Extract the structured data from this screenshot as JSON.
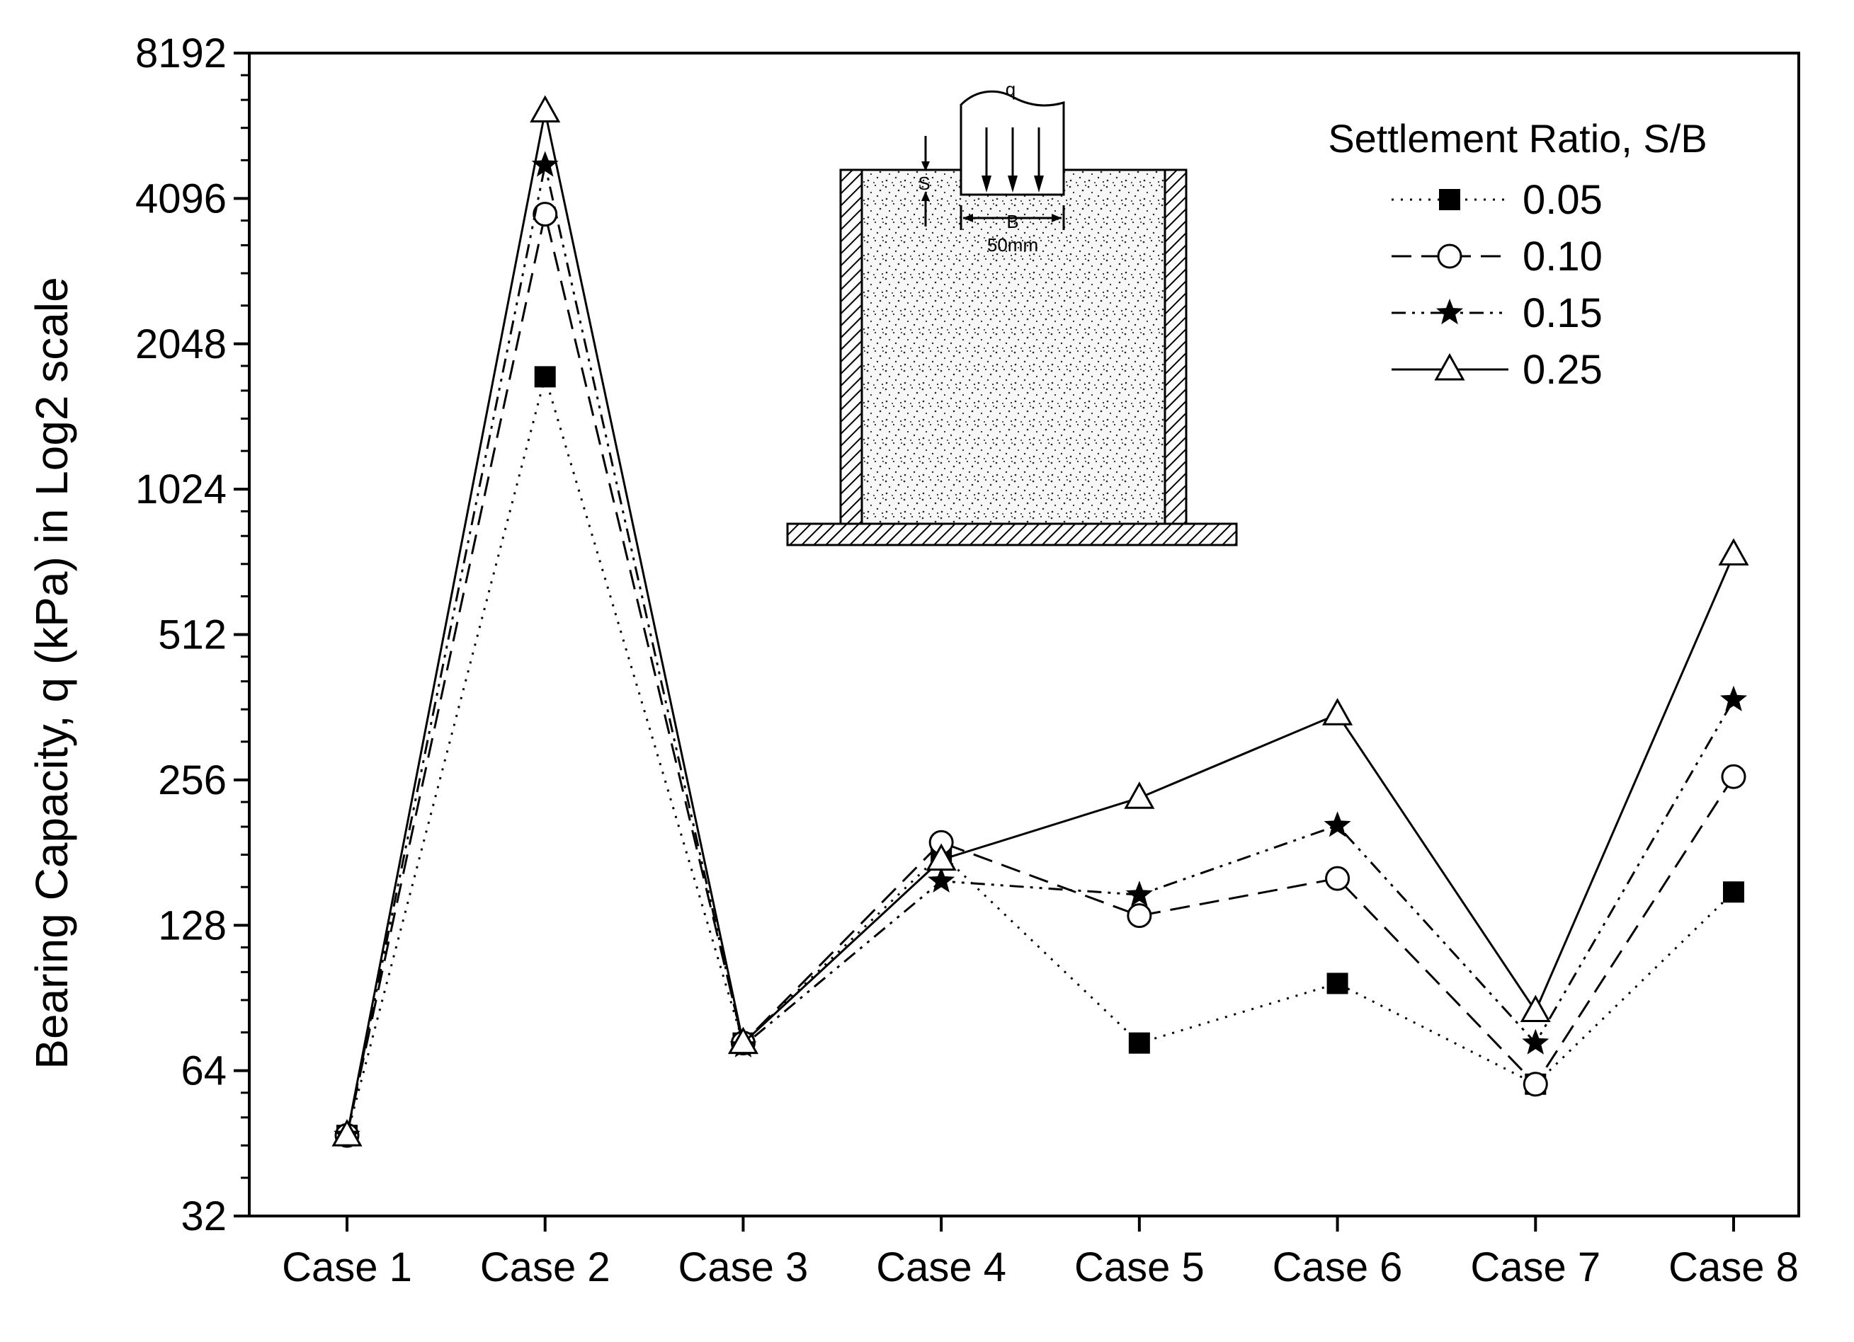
{
  "chart_data": {
    "type": "line",
    "title": "",
    "xlabel": "",
    "ylabel": "Bearing Capacity, q (kPa) in Log2 scale",
    "yscale": "log2",
    "ylim": [
      32,
      8192
    ],
    "yticks": [
      "32",
      "64",
      "128",
      "256",
      "512",
      "1024",
      "2048",
      "4096",
      "8192"
    ],
    "categories": [
      "Case 1",
      "Case 2",
      "Case 3",
      "Case 4",
      "Case 5",
      "Case 6",
      "Case 7",
      "Case 8"
    ],
    "legend": {
      "title": "Settlement Ratio, S/B",
      "position": "top-right"
    },
    "series": [
      {
        "name": "0.05",
        "marker": "square-filled",
        "line": "dotted",
        "values": [
          47,
          1750,
          73,
          180,
          73,
          97,
          60,
          150
        ]
      },
      {
        "name": "0.10",
        "marker": "circle-open",
        "line": "dashed",
        "values": [
          47,
          3800,
          73,
          190,
          134,
          160,
          60,
          260
        ]
      },
      {
        "name": "0.15",
        "marker": "star-filled",
        "line": "dash-dot-dot",
        "values": [
          47,
          4800,
          72,
          158,
          148,
          206,
          73,
          375
        ]
      },
      {
        "name": "0.25",
        "marker": "triangle-open",
        "line": "solid",
        "values": [
          47,
          6200,
          73,
          175,
          235,
          350,
          85,
          750
        ]
      }
    ],
    "inset": {
      "q_label": "q",
      "s_label": "S",
      "b_label": "B",
      "width_label": "50mm"
    }
  }
}
